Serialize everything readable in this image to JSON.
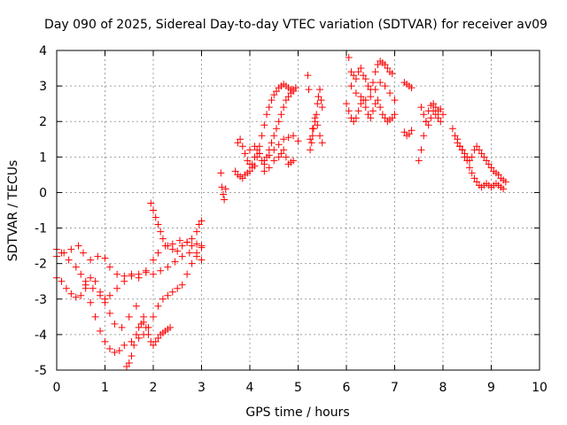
{
  "chart_data": {
    "type": "scatter",
    "title": "Day 090 of 2025, Sidereal Day-to-day VTEC variation (SDTVAR) for receiver av09",
    "xlabel": "GPS time / hours",
    "ylabel": "SDTVAR / TECUs",
    "xlim": [
      0,
      10
    ],
    "ylim": [
      -5,
      4
    ],
    "xticks": [
      "0",
      "1",
      "2",
      "3",
      "4",
      "5",
      "6",
      "7",
      "8",
      "9",
      "10"
    ],
    "yticks": [
      "-5",
      "-4",
      "-3",
      "-2",
      "-1",
      "0",
      "1",
      "2",
      "3",
      "4"
    ],
    "grid": true,
    "marker": "plus",
    "color": "#ff0000",
    "series": [
      {
        "x": [
          0.0,
          0.15,
          0.3,
          0.45,
          0.55,
          0.7,
          0.85,
          1.0,
          1.1,
          1.25,
          1.4,
          1.55,
          1.7,
          1.85,
          2.0,
          2.1,
          2.25,
          2.4,
          2.55,
          2.7,
          2.8,
          2.9,
          3.0
        ],
        "y": [
          -1.8,
          -1.7,
          -1.6,
          -1.5,
          -1.7,
          -1.9,
          -1.8,
          -1.85,
          -2.1,
          -2.3,
          -2.35,
          -2.3,
          -2.4,
          -2.2,
          -1.9,
          -1.7,
          -1.5,
          -1.45,
          -1.35,
          -1.4,
          -1.5,
          -1.45,
          -1.55
        ]
      },
      {
        "x": [
          0.0,
          0.1,
          0.25,
          0.4,
          0.5,
          0.6,
          0.75,
          0.9,
          1.0,
          1.1,
          1.25,
          1.4,
          1.55,
          1.7,
          1.85,
          2.0,
          2.15,
          2.3,
          2.45,
          2.6,
          2.75,
          2.9,
          3.0
        ],
        "y": [
          -1.6,
          -1.7,
          -1.9,
          -2.1,
          -2.3,
          -2.5,
          -2.7,
          -2.9,
          -3.0,
          -2.9,
          -2.7,
          -2.5,
          -2.35,
          -2.3,
          -2.25,
          -2.3,
          -2.2,
          -2.1,
          -1.95,
          -1.8,
          -1.7,
          -1.8,
          -1.9
        ]
      },
      {
        "x": [
          0.0,
          0.1,
          0.2,
          0.3,
          0.4,
          0.5,
          0.6,
          0.7,
          0.8,
          0.9,
          1.0,
          1.1,
          1.2,
          1.35,
          1.5,
          1.65,
          1.8
        ],
        "y": [
          -2.4,
          -2.5,
          -2.7,
          -2.85,
          -2.95,
          -2.9,
          -2.6,
          -2.4,
          -2.5,
          -2.8,
          -3.1,
          -3.4,
          -3.7,
          -3.8,
          -3.5,
          -3.2,
          -3.5
        ]
      },
      {
        "x": [
          0.6,
          0.7,
          0.8,
          0.9,
          1.0,
          1.1,
          1.2,
          1.3,
          1.4,
          1.55,
          1.7,
          1.8,
          1.9,
          2.0,
          2.1,
          2.2,
          2.3,
          2.4,
          2.5,
          2.6,
          2.7,
          2.8,
          2.9,
          3.0
        ],
        "y": [
          -2.7,
          -3.1,
          -3.5,
          -3.9,
          -4.2,
          -4.4,
          -4.5,
          -4.45,
          -4.3,
          -4.2,
          -4.1,
          -4.0,
          -3.8,
          -3.5,
          -3.2,
          -3.0,
          -2.9,
          -2.8,
          -2.7,
          -2.6,
          -2.3,
          -2.0,
          -1.7,
          -1.5
        ]
      },
      {
        "x": [
          1.45,
          1.5,
          1.55,
          1.6,
          1.65,
          1.7,
          1.75,
          1.8,
          1.85,
          1.9,
          1.95,
          2.0,
          2.05,
          2.1,
          2.15,
          2.2,
          2.25,
          2.3,
          2.35
        ],
        "y": [
          -4.9,
          -4.8,
          -4.6,
          -4.3,
          -4.0,
          -3.8,
          -3.7,
          -3.65,
          -3.8,
          -4.0,
          -4.2,
          -4.3,
          -4.2,
          -4.1,
          -4.0,
          -3.95,
          -3.9,
          -3.85,
          -3.8
        ]
      },
      {
        "x": [
          1.95,
          2.0,
          2.05,
          2.1,
          2.15,
          2.2,
          2.3,
          2.4,
          2.5,
          2.6,
          2.7,
          2.8,
          2.9,
          2.95,
          3.0
        ],
        "y": [
          -0.3,
          -0.5,
          -0.7,
          -0.9,
          -1.1,
          -1.3,
          -1.5,
          -1.6,
          -1.65,
          -1.5,
          -1.4,
          -1.3,
          -1.1,
          -0.9,
          -0.8
        ]
      },
      {
        "x": [
          3.4,
          3.42,
          3.45,
          3.47,
          3.5
        ],
        "y": [
          0.55,
          0.15,
          -0.05,
          -0.2,
          0.1
        ]
      },
      {
        "x": [
          3.75,
          3.8,
          3.85,
          3.9,
          3.95,
          4.0,
          4.05,
          4.1,
          4.15,
          4.2,
          4.25,
          4.3,
          4.35,
          4.4,
          4.45,
          4.5,
          4.55,
          4.6,
          4.65,
          4.7,
          4.75,
          4.8,
          4.85,
          4.9
        ],
        "y": [
          1.4,
          1.5,
          1.3,
          1.1,
          0.9,
          0.8,
          0.7,
          0.75,
          1.0,
          1.3,
          1.6,
          1.9,
          2.2,
          2.4,
          2.6,
          2.75,
          2.85,
          2.95,
          3.0,
          3.05,
          3.0,
          2.95,
          2.9,
          2.85
        ]
      },
      {
        "x": [
          3.7,
          3.75,
          3.8,
          3.85,
          3.9,
          3.95,
          4.0,
          4.05,
          4.1,
          4.15,
          4.2,
          4.25,
          4.3,
          4.35,
          4.4,
          4.45,
          4.5,
          4.55,
          4.6,
          4.65,
          4.7,
          4.75,
          4.8,
          4.85,
          4.9,
          4.95
        ],
        "y": [
          0.6,
          0.5,
          0.45,
          0.4,
          0.5,
          0.55,
          0.6,
          0.8,
          1.0,
          1.2,
          1.1,
          0.9,
          0.8,
          1.0,
          1.2,
          1.4,
          1.6,
          1.8,
          2.0,
          2.2,
          2.4,
          2.6,
          2.7,
          2.8,
          2.9,
          2.95
        ]
      },
      {
        "x": [
          4.0,
          4.1,
          4.2,
          4.3,
          4.4,
          4.5,
          4.6,
          4.7,
          4.8,
          4.9,
          5.0
        ],
        "y": [
          1.2,
          1.3,
          1.1,
          0.9,
          1.05,
          1.2,
          1.35,
          1.5,
          1.55,
          1.6,
          1.45
        ]
      },
      {
        "x": [
          4.3,
          4.4,
          4.5,
          4.6,
          4.65,
          4.7,
          4.75,
          4.8,
          4.85,
          4.9
        ],
        "y": [
          0.6,
          0.7,
          0.9,
          1.0,
          1.1,
          1.2,
          1.0,
          0.8,
          0.85,
          0.9
        ]
      },
      {
        "x": [
          5.2,
          5.22,
          5.25,
          5.28,
          5.3,
          5.32,
          5.35,
          5.38,
          5.4,
          5.42,
          5.45,
          5.48,
          5.5
        ],
        "y": [
          3.3,
          2.9,
          1.2,
          1.4,
          1.6,
          1.8,
          2.0,
          2.2,
          2.5,
          2.7,
          2.9,
          2.6,
          2.4
        ]
      },
      {
        "x": [
          5.25,
          5.3,
          5.35,
          5.4,
          5.45,
          5.5
        ],
        "y": [
          1.5,
          1.8,
          2.1,
          1.9,
          1.6,
          1.4
        ]
      },
      {
        "x": [
          6.05,
          6.1,
          6.15,
          6.2,
          6.25,
          6.3,
          6.35,
          6.4,
          6.45,
          6.5,
          6.55,
          6.6,
          6.65,
          6.7,
          6.75,
          6.8,
          6.85,
          6.9,
          6.95
        ],
        "y": [
          3.8,
          3.4,
          3.3,
          3.2,
          3.4,
          3.5,
          3.3,
          3.2,
          3.0,
          2.9,
          3.1,
          3.4,
          3.6,
          3.7,
          3.65,
          3.6,
          3.5,
          3.4,
          3.35
        ]
      },
      {
        "x": [
          6.0,
          6.05,
          6.1,
          6.15,
          6.2,
          6.25,
          6.3,
          6.35,
          6.4,
          6.45,
          6.5,
          6.55,
          6.6,
          6.65,
          6.7,
          6.75,
          6.8,
          6.85,
          6.9,
          6.95,
          7.0
        ],
        "y": [
          2.5,
          2.3,
          2.1,
          2.0,
          2.1,
          2.3,
          2.5,
          2.6,
          2.4,
          2.2,
          2.1,
          2.3,
          2.5,
          2.6,
          2.4,
          2.2,
          2.1,
          2.0,
          2.05,
          2.1,
          2.2
        ]
      },
      {
        "x": [
          6.1,
          6.2,
          6.3,
          6.4,
          6.5,
          6.6,
          6.7,
          6.8,
          6.9,
          7.0
        ],
        "y": [
          3.0,
          2.8,
          2.7,
          2.6,
          2.7,
          2.9,
          3.1,
          3.0,
          2.8,
          2.6
        ]
      },
      {
        "x": [
          7.2,
          7.25,
          7.3,
          7.35
        ],
        "y": [
          1.7,
          1.6,
          1.65,
          1.75
        ]
      },
      {
        "x": [
          7.2,
          7.25,
          7.3,
          7.35
        ],
        "y": [
          3.1,
          3.05,
          3.0,
          2.95
        ]
      },
      {
        "x": [
          7.5,
          7.55,
          7.6,
          7.65,
          7.7,
          7.75,
          7.8,
          7.85,
          7.9,
          7.95
        ],
        "y": [
          0.9,
          1.2,
          1.6,
          2.0,
          2.3,
          2.45,
          2.5,
          2.4,
          2.3,
          2.35
        ]
      },
      {
        "x": [
          7.55,
          7.6,
          7.65,
          7.7,
          7.75,
          7.8,
          7.85,
          7.9,
          7.95,
          8.0
        ],
        "y": [
          2.4,
          2.2,
          2.0,
          1.9,
          2.1,
          2.3,
          2.2,
          2.1,
          2.0,
          2.2
        ]
      },
      {
        "x": [
          8.2,
          8.25,
          8.3,
          8.35,
          8.4,
          8.45,
          8.5,
          8.55,
          8.6,
          8.65,
          8.7,
          8.75,
          8.8,
          8.85,
          8.9,
          8.95,
          9.0,
          9.05,
          9.1,
          9.15,
          9.2,
          9.25,
          9.3
        ],
        "y": [
          1.8,
          1.6,
          1.4,
          1.3,
          1.2,
          1.1,
          1.0,
          0.9,
          1.0,
          1.2,
          1.3,
          1.2,
          1.1,
          1.0,
          0.9,
          0.8,
          0.7,
          0.6,
          0.55,
          0.5,
          0.4,
          0.35,
          0.3
        ]
      },
      {
        "x": [
          8.3,
          8.35,
          8.4,
          8.45,
          8.5,
          8.55,
          8.6,
          8.65,
          8.7,
          8.75,
          8.8,
          8.85,
          8.9,
          8.95,
          9.0,
          9.05,
          9.1,
          9.15,
          9.2,
          9.25
        ],
        "y": [
          1.5,
          1.3,
          1.2,
          1.0,
          0.9,
          0.7,
          0.55,
          0.4,
          0.3,
          0.2,
          0.15,
          0.2,
          0.25,
          0.2,
          0.15,
          0.2,
          0.25,
          0.2,
          0.15,
          0.1
        ]
      }
    ]
  }
}
